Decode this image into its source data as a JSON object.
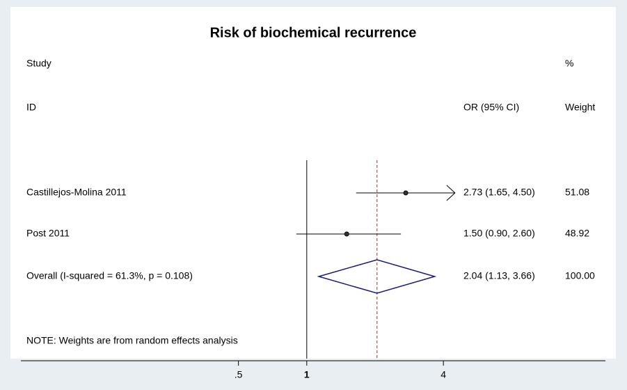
{
  "chart_data": {
    "type": "forest",
    "title": "Risk of biochemical recurrence",
    "header": {
      "study_1": "Study",
      "study_2": "ID",
      "effect": "OR (95% CI)",
      "weight_1": "%",
      "weight_2": "Weight"
    },
    "categories": [
      "Castillejos-Molina 2011",
      "Post 2011",
      "Overall  (I-squared = 61.3%, p = 0.108)"
    ],
    "values": [
      2.73,
      1.5,
      2.04
    ],
    "lower": [
      1.65,
      0.9,
      1.13
    ],
    "upper": [
      4.5,
      2.6,
      3.66
    ],
    "effect_labels": [
      "2.73 (1.65, 4.50)",
      "1.50 (0.90, 2.60)",
      "2.04 (1.13, 3.66)"
    ],
    "weights": [
      "51.08",
      "48.92",
      "100.00"
    ],
    "note": "NOTE: Weights are from random effects analysis",
    "null_line": 1,
    "log_x": true,
    "xlim": [
      0.055,
      20.7
    ],
    "xticks": [
      {
        "value": 0.5,
        "label": ".5"
      },
      1,
      4
    ],
    "line_color": "#000000",
    "diamond_color": "#1a1a7a",
    "overall_line_color": "#b22222"
  }
}
